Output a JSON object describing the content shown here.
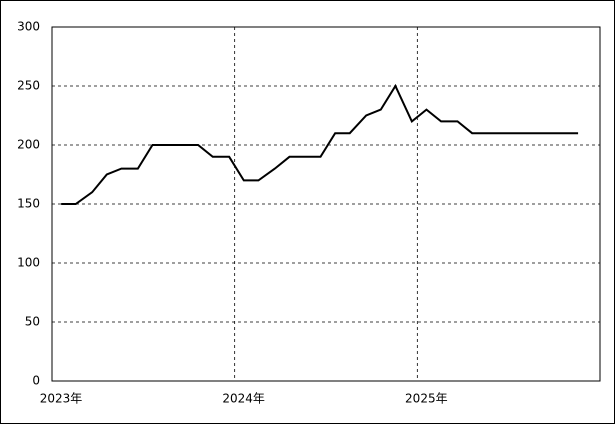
{
  "chart_data": {
    "type": "line",
    "x": [
      2023.05,
      2023.13,
      2023.22,
      2023.3,
      2023.38,
      2023.47,
      2023.55,
      2023.63,
      2023.72,
      2023.8,
      2023.88,
      2023.97,
      2024.05,
      2024.13,
      2024.22,
      2024.3,
      2024.38,
      2024.47,
      2024.55,
      2024.63,
      2024.72,
      2024.8,
      2024.88,
      2024.97,
      2025.05,
      2025.13,
      2025.22,
      2025.3,
      2025.38,
      2025.47,
      2025.55,
      2025.63,
      2025.72,
      2025.8,
      2025.88
    ],
    "values": [
      150,
      150,
      160,
      175,
      180,
      180,
      200,
      200,
      200,
      200,
      190,
      190,
      170,
      170,
      180,
      190,
      190,
      190,
      210,
      210,
      225,
      230,
      250,
      220,
      230,
      220,
      220,
      210,
      210,
      210,
      210,
      210,
      210,
      210,
      210
    ],
    "color": "#000000",
    "xlim": [
      2023,
      2026
    ],
    "xticks": [
      {
        "value": 2023,
        "label": "2023年"
      },
      {
        "value": 2024,
        "label": "2024年"
      },
      {
        "value": 2025,
        "label": "2025年"
      }
    ],
    "ylim": [
      0,
      300
    ],
    "yticks": [
      0,
      50,
      100,
      150,
      200,
      250,
      300
    ],
    "grid": true
  }
}
